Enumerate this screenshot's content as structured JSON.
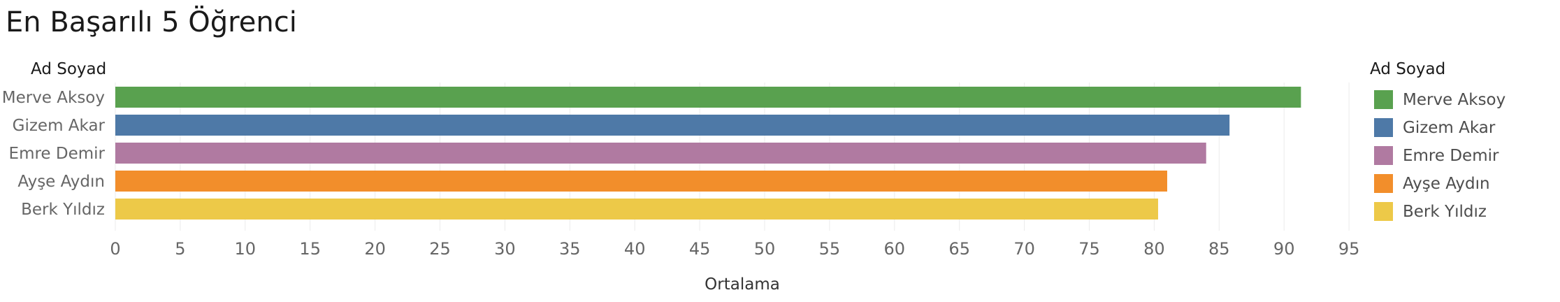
{
  "chart_data": {
    "type": "bar",
    "orientation": "horizontal",
    "title": "En Başarılı 5 Öğrenci",
    "row_header": "Ad Soyad",
    "xlabel": "Ortalama",
    "ylabel": "",
    "xlim": [
      0,
      95
    ],
    "x_ticks": [
      0,
      5,
      10,
      15,
      20,
      25,
      30,
      35,
      40,
      45,
      50,
      55,
      60,
      65,
      70,
      75,
      80,
      85,
      90,
      95
    ],
    "categories": [
      "Merve Aksoy",
      "Gizem Akar",
      "Emre Demir",
      "Ayşe Aydın",
      "Berk Yıldız"
    ],
    "values": [
      91.3,
      85.8,
      84.0,
      81.0,
      80.3
    ],
    "colors": [
      "#59a14f",
      "#4e79a7",
      "#b07aa1",
      "#f28e2b",
      "#edc948"
    ],
    "grid": true,
    "legend": {
      "title": "Ad Soyad",
      "position": "right",
      "items": [
        "Merve Aksoy",
        "Gizem Akar",
        "Emre Demir",
        "Ayşe Aydın",
        "Berk Yıldız"
      ]
    }
  }
}
